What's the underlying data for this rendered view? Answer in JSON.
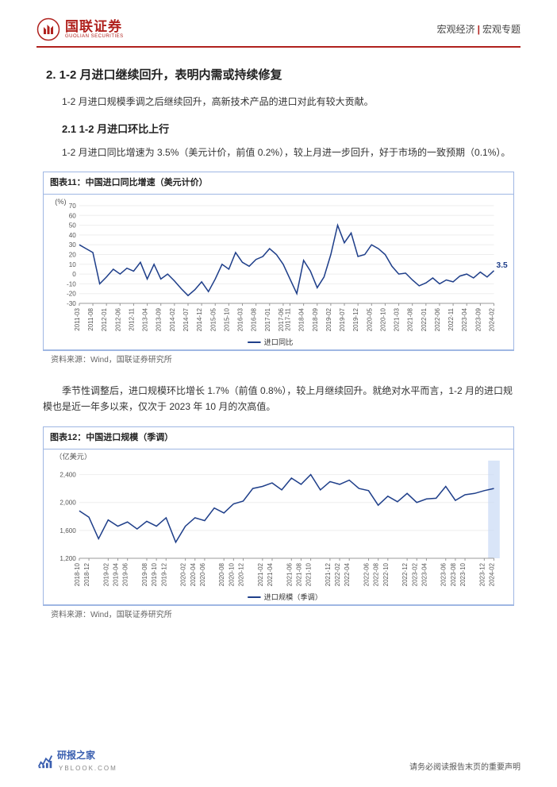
{
  "header": {
    "logo_cn": "国联证券",
    "logo_en": "GUOLIAN SECURITIES",
    "category": "宏观经济",
    "subcategory": "宏观专题"
  },
  "section": {
    "h2": "2. 1-2 月进口继续回升，表明内需或持续修复",
    "intro": "1-2 月进口规模季调之后继续回升，高新技术产品的进口对此有较大贡献。",
    "h3_1": "2.1 1-2 月进口环比上行",
    "p1": "1-2 月进口同比增速为 3.5%（美元计价，前值 0.2%），较上月进一步回升，好于市场的一致预期（0.1%）。",
    "p2": "季节性调整后，进口规模环比增长 1.7%（前值 0.8%），较上月继续回升。就绝对水平而言，1-2 月的进口规模也是近一年多以来，仅次于 2023 年 10 月的次高值。"
  },
  "chart11": {
    "type": "line",
    "title": "图表11：中国进口同比增速（美元计价）",
    "y_unit": "(%)",
    "legend": "进口同比",
    "source": "资料来源：Wind，国联证券研究所",
    "colors": {
      "line": "#1f3f8a",
      "grid": "#eee",
      "axis": "#999",
      "bg": "#ffffff"
    },
    "line_width": 1.5,
    "font_size_tick": 8,
    "end_label": "3.5",
    "ylim": [
      -30,
      70
    ],
    "ytick_step": 10,
    "x_labels": [
      "2011-03",
      "2011-08",
      "2012-01",
      "2012-06",
      "2012-11",
      "2013-04",
      "2013-09",
      "2014-02",
      "2014-07",
      "2014-12",
      "2015-05",
      "2015-10",
      "2016-03",
      "2016-08",
      "2017-01",
      "2017-06",
      "2017-11",
      "2018-04",
      "2018-09",
      "2019-02",
      "2019-07",
      "2019-12",
      "2020-05",
      "2020-10",
      "2021-03",
      "2021-08",
      "2022-01",
      "2022-06",
      "2022-11",
      "2023-04",
      "2023-09",
      "2024-02"
    ],
    "values": [
      30,
      26,
      22,
      -10,
      -3,
      5,
      0,
      6,
      3,
      12,
      -5,
      10,
      -5,
      0,
      -7,
      -15,
      -22,
      -16,
      -8,
      -18,
      -5,
      10,
      5,
      22,
      12,
      8,
      15,
      18,
      26,
      20,
      10,
      -5,
      -20,
      14,
      3,
      -14,
      -3,
      20,
      50,
      32,
      42,
      18,
      20,
      30,
      26,
      20,
      8,
      0,
      1,
      -6,
      -12,
      -9,
      -4,
      -10,
      -6,
      -8,
      -2,
      0,
      -4,
      2,
      -3,
      3.5
    ]
  },
  "chart12": {
    "type": "line",
    "title": "图表12：中国进口规模（季调）",
    "y_unit": "（亿美元）",
    "legend": "进口规模（季调）",
    "source": "资料来源：Wind，国联证券研究所",
    "colors": {
      "line": "#1f3f8a",
      "grid": "#eee",
      "axis": "#999",
      "bg": "#ffffff",
      "highlight": "#c9daf5"
    },
    "line_width": 1.5,
    "font_size_tick": 8,
    "ylim": [
      1200,
      2600
    ],
    "ytick_step": 400,
    "yticks": [
      1200,
      1600,
      2000,
      2400
    ],
    "x_labels": [
      "2018-10",
      "2018-12",
      "2019-02",
      "2019-04",
      "2019-06",
      "2019-08",
      "2019-10",
      "2019-12",
      "2020-02",
      "2020-04",
      "2020-06",
      "2020-08",
      "2020-10",
      "2020-12",
      "2021-02",
      "2021-04",
      "2021-06",
      "2021-08",
      "2021-10",
      "2021-12",
      "2022-02",
      "2022-04",
      "2022-06",
      "2022-08",
      "2022-10",
      "2022-12",
      "2023-02",
      "2023-04",
      "2023-06",
      "2023-08",
      "2023-10",
      "2023-12",
      "2024-02"
    ],
    "values": [
      1880,
      1790,
      1480,
      1750,
      1660,
      1720,
      1620,
      1730,
      1660,
      1780,
      1430,
      1660,
      1780,
      1740,
      1920,
      1850,
      1980,
      2020,
      2200,
      2230,
      2280,
      2180,
      2350,
      2260,
      2400,
      2180,
      2300,
      2260,
      2320,
      2200,
      2170,
      1960,
      2090,
      2010,
      2130,
      2000,
      2050,
      2060,
      2230,
      2030,
      2110,
      2130,
      2170,
      2200
    ],
    "highlight_last": true
  },
  "footer": {
    "logo_text": "研报之家",
    "logo_sub": "YBLOOK.COM",
    "disclaimer": "请务必阅读报告末页的重要声明"
  }
}
